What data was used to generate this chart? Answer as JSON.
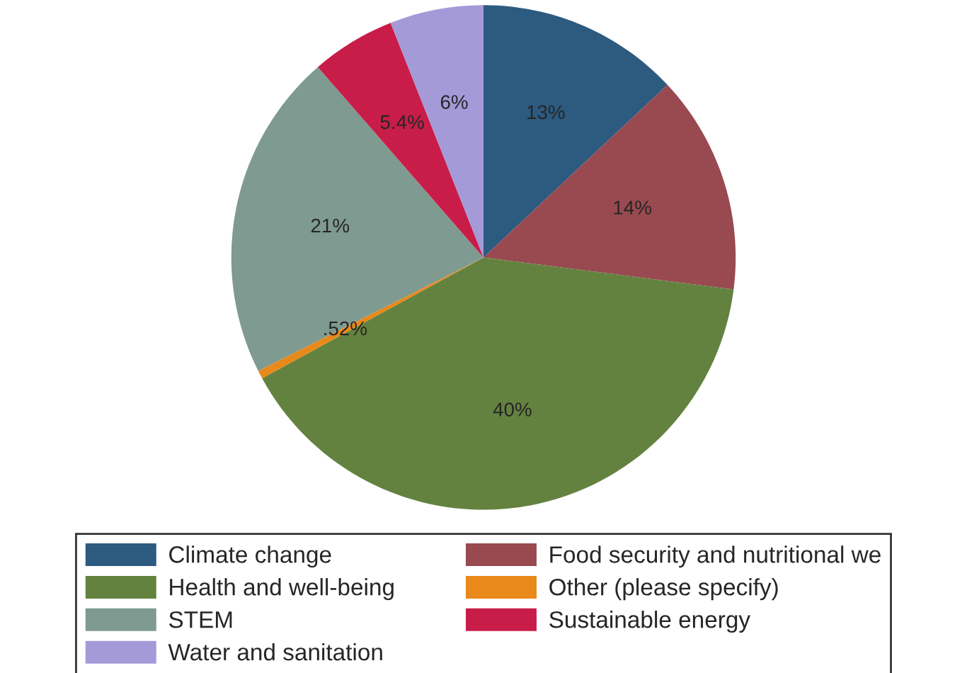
{
  "chart_data": {
    "type": "pie",
    "categories": [
      "Climate change",
      "Food security and nutritional we",
      "Health and well-being",
      "Other (please specify)",
      "STEM",
      "Sustainable energy",
      "Water and sanitation"
    ],
    "values": [
      13,
      14,
      40,
      0.52,
      21,
      5.4,
      6
    ],
    "value_labels": [
      "13%",
      "14%",
      "40%",
      ".52%",
      "21%",
      "5.4%",
      "6%"
    ],
    "colors": [
      "#2d5a7f",
      "#984a50",
      "#64823f",
      "#e8891a",
      "#7f9a90",
      "#c81d48",
      "#a49ad8"
    ],
    "legend": "bottom"
  }
}
